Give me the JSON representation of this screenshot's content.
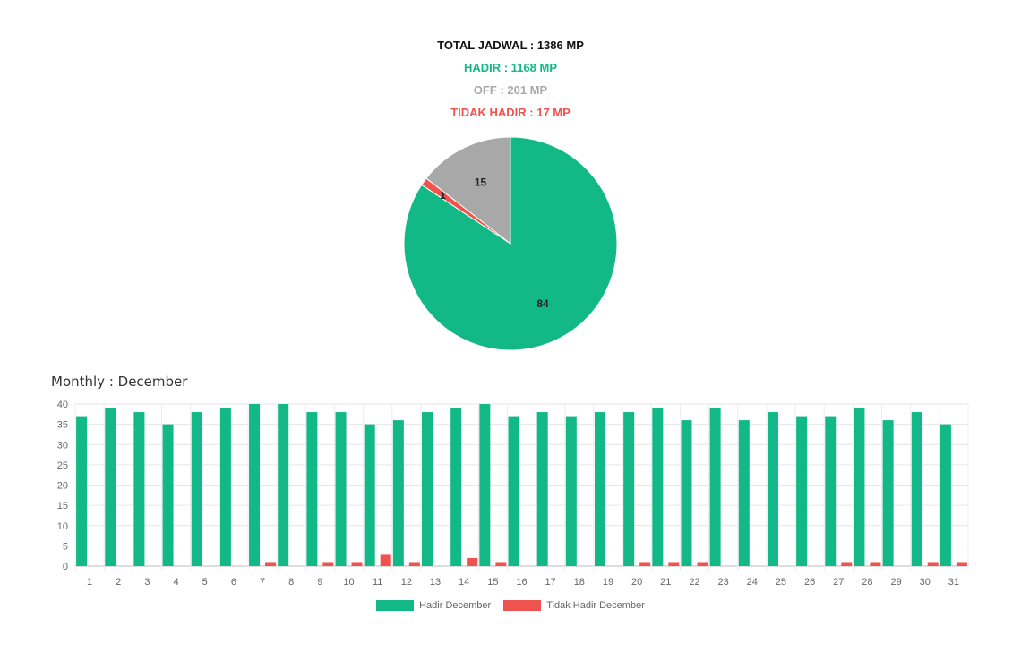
{
  "summary": {
    "total": "TOTAL JADWAL : 1386 MP",
    "hadir": "HADIR : 1168 MP",
    "off": "OFF : 201 MP",
    "tidak": "TIDAK HADIR : 17 MP"
  },
  "colors": {
    "hadir": "#12b886",
    "off": "#a8a8a8",
    "tidak": "#ef5350"
  },
  "monthly_title": "Monthly : December",
  "chart_data": [
    {
      "type": "pie",
      "slices": [
        {
          "label": "84",
          "value": 84.3,
          "color": "#12b886"
        },
        {
          "label": "1",
          "value": 1.2,
          "color": "#ef5350"
        },
        {
          "label": "15",
          "value": 14.5,
          "color": "#a8a8a8"
        }
      ]
    },
    {
      "type": "bar",
      "categories": [
        "1",
        "2",
        "3",
        "4",
        "5",
        "6",
        "7",
        "8",
        "9",
        "10",
        "11",
        "12",
        "13",
        "14",
        "15",
        "16",
        "17",
        "18",
        "19",
        "20",
        "21",
        "22",
        "23",
        "24",
        "25",
        "26",
        "27",
        "28",
        "29",
        "30",
        "31"
      ],
      "series": [
        {
          "name": "Hadir December",
          "color": "#12b886",
          "values": [
            37,
            39,
            38,
            35,
            38,
            39,
            40,
            40,
            38,
            38,
            35,
            36,
            38,
            39,
            40,
            37,
            38,
            37,
            38,
            38,
            39,
            36,
            39,
            36,
            38,
            37,
            37,
            39,
            36,
            38,
            35
          ]
        },
        {
          "name": "Tidak Hadir December",
          "color": "#ef5350",
          "values": [
            0,
            0,
            0,
            0,
            0,
            0,
            1,
            0,
            1,
            1,
            3,
            1,
            0,
            2,
            1,
            0,
            0,
            0,
            0,
            1,
            1,
            1,
            0,
            0,
            0,
            0,
            1,
            1,
            0,
            1,
            1
          ]
        }
      ],
      "ylim": [
        0,
        40
      ],
      "yticks": [
        0,
        5,
        10,
        15,
        20,
        25,
        30,
        35,
        40
      ],
      "grid": true,
      "legend": "bottom"
    }
  ]
}
